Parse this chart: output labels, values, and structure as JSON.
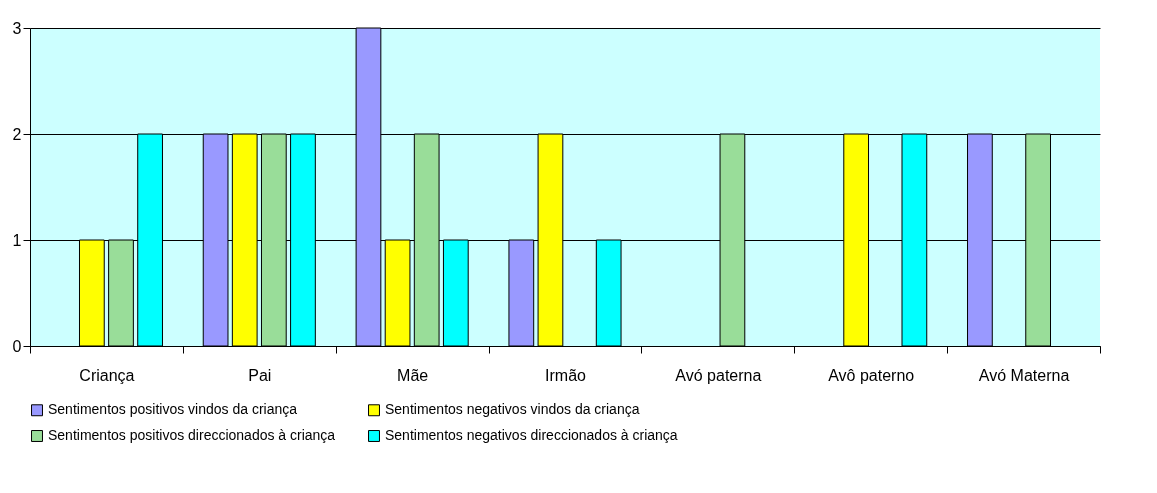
{
  "chart_data": {
    "type": "bar",
    "categories": [
      "Criança",
      "Pai",
      "Mãe",
      "Irmão",
      "Avó paterna",
      "Avô paterno",
      "Avó Materna"
    ],
    "series": [
      {
        "name": "Sentimentos positivos vindos da criança",
        "color": "#9999ff",
        "values": [
          0,
          2,
          3,
          1,
          0,
          0,
          2
        ]
      },
      {
        "name": "Sentimentos negativos vindos da criança",
        "color": "#ffff00",
        "values": [
          1,
          2,
          1,
          2,
          0,
          2,
          0
        ]
      },
      {
        "name": "Sentimentos positivos direccionados à criança",
        "color": "#99dd99",
        "values": [
          1,
          2,
          2,
          0,
          2,
          0,
          2
        ]
      },
      {
        "name": "Sentimentos negativos direccionados à criança",
        "color": "#00ffff",
        "values": [
          2,
          2,
          1,
          1,
          0,
          2,
          0
        ]
      }
    ],
    "ylim": [
      0,
      3
    ],
    "yticks": [
      0,
      1,
      2,
      3
    ],
    "grid": "y",
    "legend": "bottom"
  }
}
